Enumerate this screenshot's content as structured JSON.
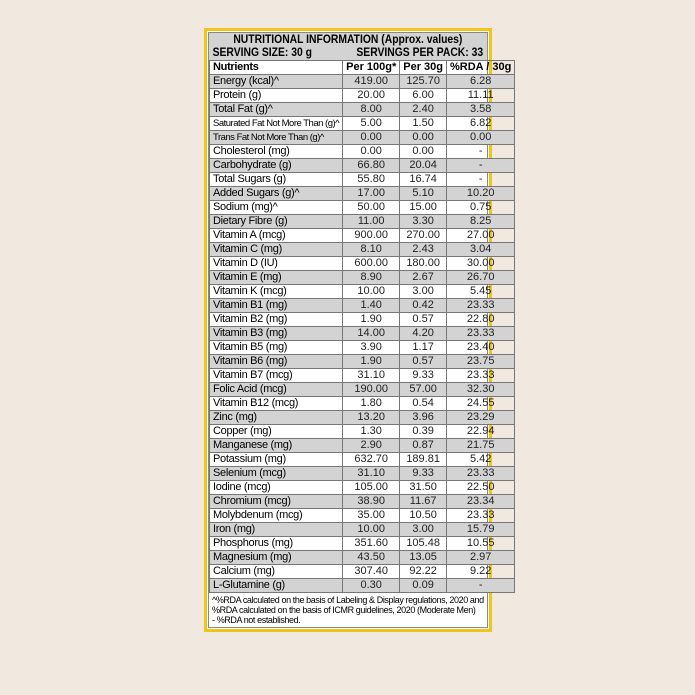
{
  "title": "NUTRITIONAL INFORMATION (Approx. values)",
  "serving_size": "SERVING SIZE: 30 g",
  "servings_per_pack": "SERVINGS PER PACK: 33",
  "columns": [
    "Nutrients",
    "Per 100g*",
    "Per 30g",
    "%RDA / 30g"
  ],
  "rows": [
    [
      "Energy (kcal)^",
      "419.00",
      "125.70",
      "6.28"
    ],
    [
      "Protein (g)",
      "20.00",
      "6.00",
      "11.11"
    ],
    [
      "Total Fat (g)^",
      "8.00",
      "2.40",
      "3.58"
    ],
    [
      "Saturated Fat Not More Than (g)^",
      "5.00",
      "1.50",
      "6.82"
    ],
    [
      "Trans Fat Not More Than (g)^",
      "0.00",
      "0.00",
      "0.00"
    ],
    [
      "Cholesterol (mg)",
      "0.00",
      "0.00",
      "-"
    ],
    [
      "Carbohydrate (g)",
      "66.80",
      "20.04",
      "-"
    ],
    [
      "Total Sugars (g)",
      "55.80",
      "16.74",
      "-"
    ],
    [
      "Added Sugars (g)^",
      "17.00",
      "5.10",
      "10.20"
    ],
    [
      "Sodium (mg)^",
      "50.00",
      "15.00",
      "0.75"
    ],
    [
      "Dietary Fibre (g)",
      "11.00",
      "3.30",
      "8.25"
    ],
    [
      "Vitamin A (mcg)",
      "900.00",
      "270.00",
      "27.00"
    ],
    [
      "Vitamin C (mg)",
      "8.10",
      "2.43",
      "3.04"
    ],
    [
      "Vitamin D (IU)",
      "600.00",
      "180.00",
      "30.00"
    ],
    [
      "Vitamin E (mg)",
      "8.90",
      "2.67",
      "26.70"
    ],
    [
      "Vitamin K (mcg)",
      "10.00",
      "3.00",
      "5.45"
    ],
    [
      "Vitamin B1 (mg)",
      "1.40",
      "0.42",
      "23.33"
    ],
    [
      "Vitamin B2 (mg)",
      "1.90",
      "0.57",
      "22.80"
    ],
    [
      "Vitamin B3 (mg)",
      "14.00",
      "4.20",
      "23.33"
    ],
    [
      "Vitamin B5 (mg)",
      "3.90",
      "1.17",
      "23.40"
    ],
    [
      "Vitamin B6 (mg)",
      "1.90",
      "0.57",
      "23.75"
    ],
    [
      "Vitamin B7 (mcg)",
      "31.10",
      "9.33",
      "23.33"
    ],
    [
      "Folic Acid (mcg)",
      "190.00",
      "57.00",
      "32.30"
    ],
    [
      "Vitamin B12 (mcg)",
      "1.80",
      "0.54",
      "24.55"
    ],
    [
      "Zinc (mg)",
      "13.20",
      "3.96",
      "23.29"
    ],
    [
      "Copper (mg)",
      "1.30",
      "0.39",
      "22.94"
    ],
    [
      "Manganese (mg)",
      "2.90",
      "0.87",
      "21.75"
    ],
    [
      "Potassium (mg)",
      "632.70",
      "189.81",
      "5.42"
    ],
    [
      "Selenium (mcg)",
      "31.10",
      "9.33",
      "23.33"
    ],
    [
      "Iodine (mcg)",
      "105.00",
      "31.50",
      "22.50"
    ],
    [
      "Chromium (mcg)",
      "38.90",
      "11.67",
      "23.34"
    ],
    [
      "Molybdenum (mcg)",
      "35.00",
      "10.50",
      "23.33"
    ],
    [
      "Iron (mg)",
      "10.00",
      "3.00",
      "15.79"
    ],
    [
      "Phosphorus (mg)",
      "351.60",
      "105.48",
      "10.55"
    ],
    [
      "Magnesium (mg)",
      "43.50",
      "13.05",
      "2.97"
    ],
    [
      "Calcium (mg)",
      "307.40",
      "92.22",
      "9.22"
    ],
    [
      "L-Glutamine (g)",
      "0.30",
      "0.09",
      "-"
    ]
  ],
  "footnote": [
    "^%RDA calculated on the basis of Labeling & Display regulations, 2020 and %RDA calculated on the basis of ICMR guidelines, 2020 (Moderate Men)",
    "- %RDA not established."
  ],
  "colors": {
    "border": "#f0c419",
    "stripe": "#d3d3d3",
    "background": "#f1e9df"
  }
}
